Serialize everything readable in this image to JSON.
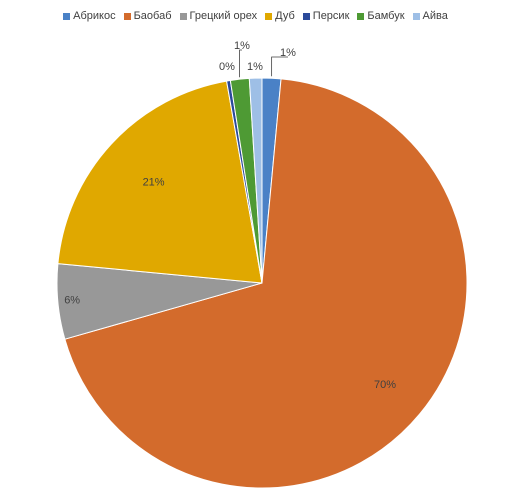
{
  "chart_data": {
    "type": "pie",
    "legend_position": "top",
    "categories": [
      "Абрикос",
      "Баобаб",
      "Грецкий орех",
      "Дуб",
      "Персик",
      "Бамбук",
      "Айва"
    ],
    "values": [
      1.5,
      70,
      6,
      21,
      0.3,
      1.5,
      1
    ],
    "data_labels": [
      "1%",
      "70%",
      "6%",
      "21%",
      "0%",
      "1%",
      "1%"
    ],
    "colors": [
      "#4a81c6",
      "#d36b2c",
      "#989898",
      "#e0a800",
      "#2b4a9a",
      "#4e9a34",
      "#9ebfe6"
    ],
    "start_angle_deg": 0,
    "direction": "clockwise"
  }
}
